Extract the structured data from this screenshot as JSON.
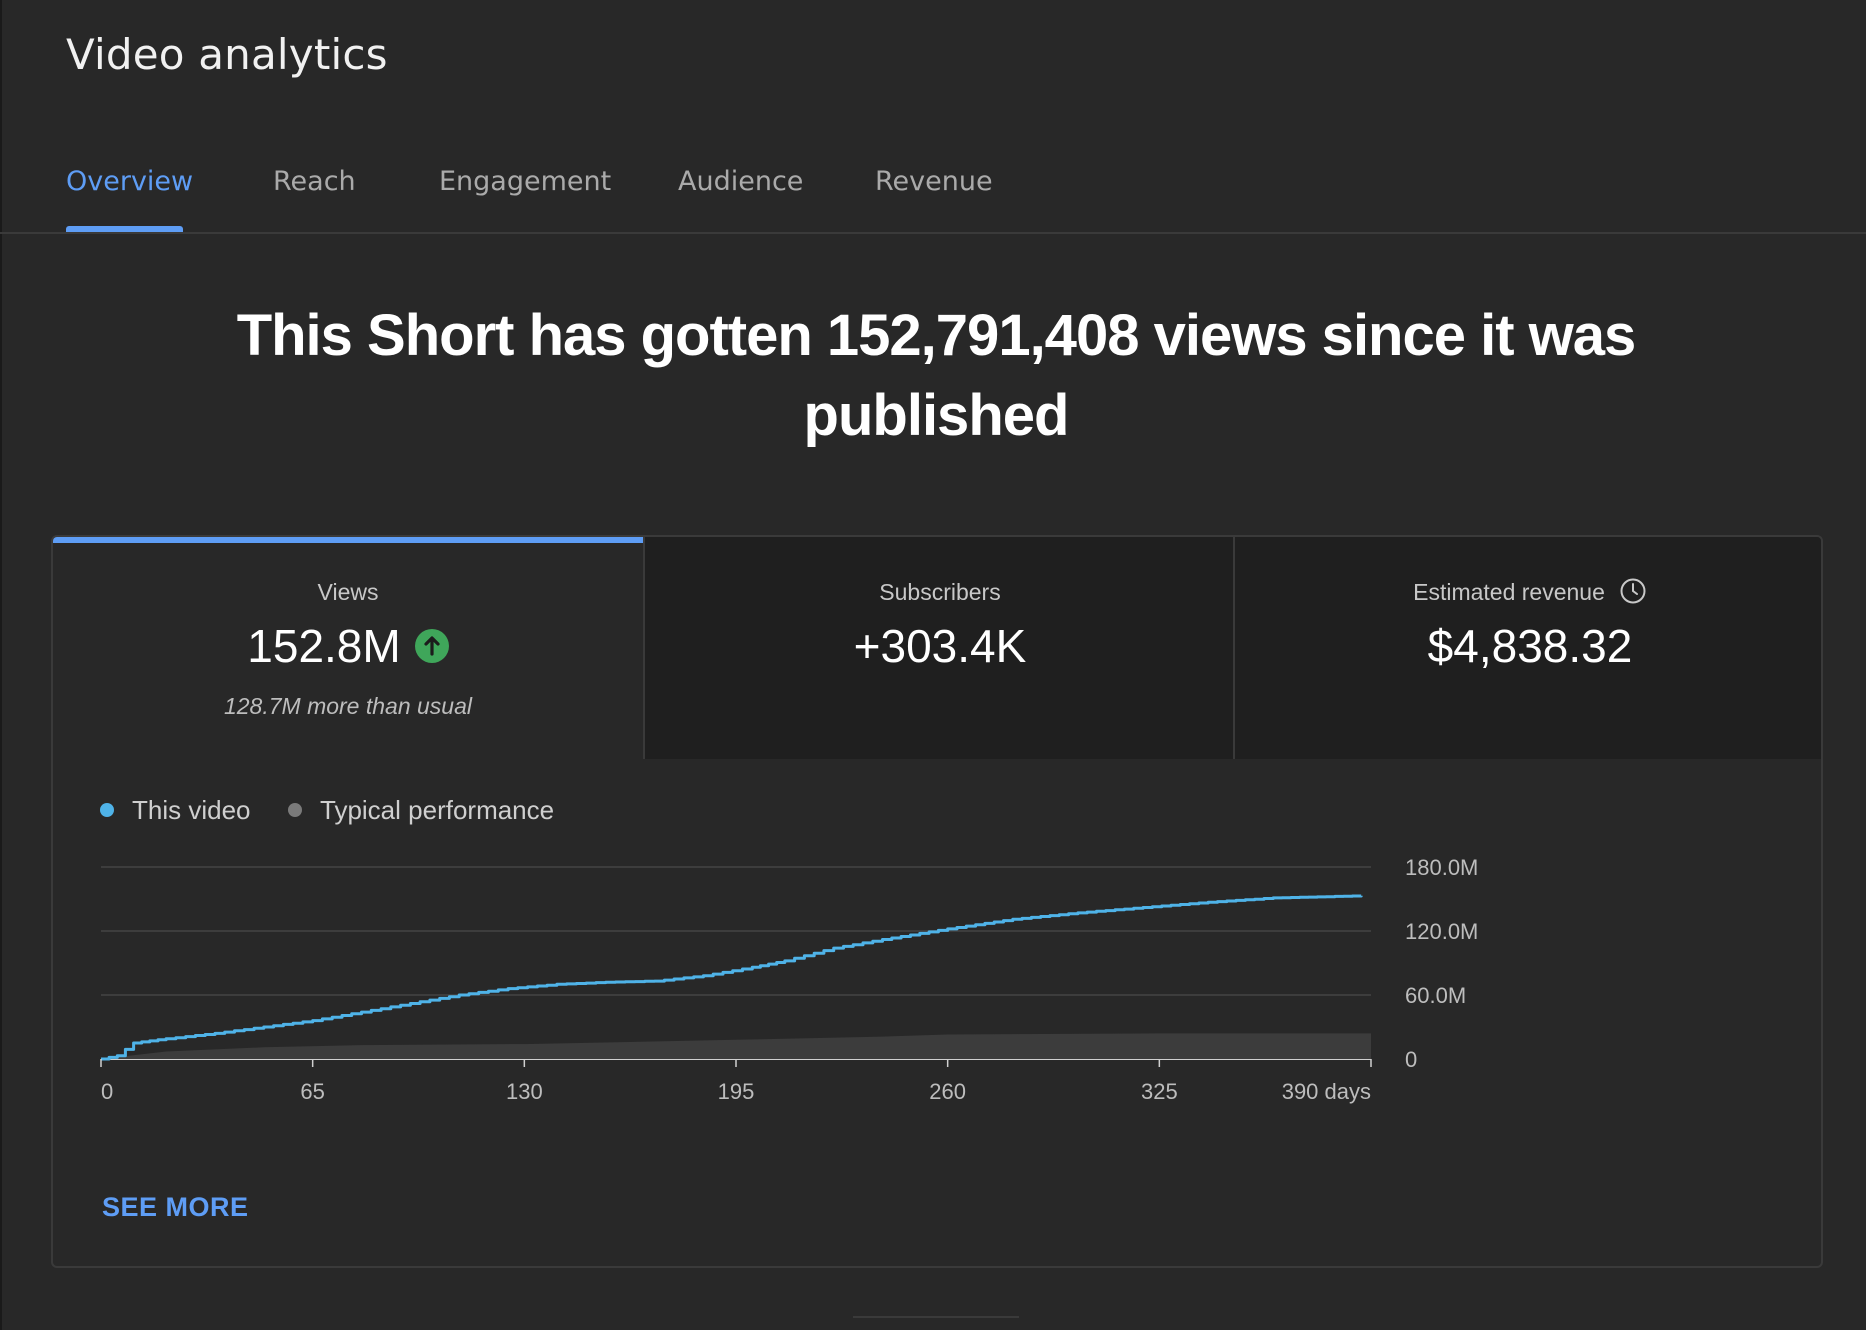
{
  "app": {
    "title": "Video analytics"
  },
  "tabs": [
    {
      "label": "Overview",
      "active": true
    },
    {
      "label": "Reach"
    },
    {
      "label": "Engagement"
    },
    {
      "label": "Audience"
    },
    {
      "label": "Revenue"
    }
  ],
  "headline": "This Short has gotten 152,791,408 views since it was published",
  "metrics": [
    {
      "label": "Views",
      "value": "152.8M",
      "note": "128.7M more than usual",
      "icon": "arrow-up-circle-icon",
      "active": true
    },
    {
      "label": "Subscribers",
      "value": "+303.4K"
    },
    {
      "label": "Estimated revenue",
      "value": "$4,838.32",
      "icon": "clock-icon"
    }
  ],
  "legend": [
    {
      "label": "This video",
      "color": "#4fb3e8"
    },
    {
      "label": "Typical performance",
      "color": "#7a7a7a"
    }
  ],
  "see_more": "SEE MORE",
  "colors": {
    "accent": "#5e9df5",
    "line": "#4fb3e8",
    "band": "#3c3c3c",
    "up": "#3fa65a"
  },
  "chart_data": {
    "type": "line",
    "x_ticks": [
      "0",
      "65",
      "130",
      "195",
      "260",
      "325",
      "390 days"
    ],
    "xlim": [
      0,
      390
    ],
    "y_ticks": [
      "0",
      "60.0M",
      "120.0M",
      "180.0M"
    ],
    "ylim": [
      0,
      180
    ],
    "yunit": "M",
    "legend_position": "top-left",
    "grid": true,
    "series": [
      {
        "name": "This video",
        "x": [
          0,
          5,
          10,
          20,
          35,
          50,
          65,
          80,
          95,
          110,
          125,
          140,
          155,
          170,
          185,
          200,
          210,
          225,
          240,
          260,
          280,
          300,
          320,
          340,
          360,
          387
        ],
        "values": [
          0,
          3,
          15,
          19,
          24,
          30,
          36,
          44,
          52,
          60,
          66,
          70,
          72,
          73,
          78,
          86,
          92,
          104,
          112,
          122,
          131,
          137,
          142,
          147,
          151,
          153
        ]
      },
      {
        "name": "Typical performance",
        "x": [
          0,
          20,
          50,
          80,
          130,
          195,
          240,
          260,
          325,
          390
        ],
        "lower": [
          0,
          0,
          0,
          0,
          0,
          0,
          0,
          0,
          0,
          0
        ],
        "upper": [
          0,
          7,
          11,
          13,
          14,
          18,
          21,
          23,
          24,
          24
        ]
      }
    ]
  }
}
